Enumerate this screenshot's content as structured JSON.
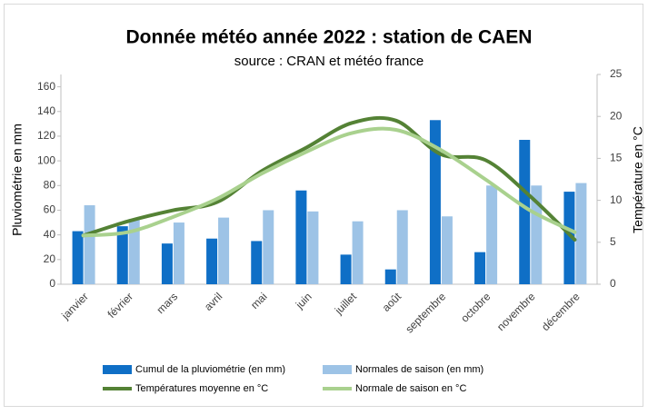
{
  "chart_data": {
    "type": "bar-line",
    "title": "Donnée météo année 2022 : station de CAEN",
    "subtitle": "source : CRAN et météo france",
    "y_label": "Pluviométrie en mm",
    "y2_label": "Température en °C",
    "categories": [
      "janvier",
      "février",
      "mars",
      "avril",
      "mai",
      "juin",
      "juillet",
      "août",
      "septembre",
      "octobre",
      "novembre",
      "décembre"
    ],
    "ylim": [
      0,
      170
    ],
    "yticks": [
      0,
      20,
      40,
      60,
      80,
      100,
      120,
      140,
      160
    ],
    "y2lim": [
      0,
      25
    ],
    "y2ticks": [
      0,
      5,
      10,
      15,
      20,
      25
    ],
    "series": [
      {
        "name": "Cumul de la pluviométrie (en mm)",
        "type": "bar",
        "color": "#0f6fc6",
        "values": [
          43,
          47,
          33,
          37,
          35,
          76,
          24,
          12,
          133,
          26,
          117,
          75
        ]
      },
      {
        "name": "Normales de saison (en mm)",
        "type": "bar",
        "color": "#9dc3e6",
        "values": [
          64,
          53,
          50,
          54,
          60,
          59,
          51,
          60,
          55,
          80,
          80,
          82
        ]
      },
      {
        "name": "Températures moyenne en °C",
        "type": "line",
        "axis": "y2",
        "color": "#548235",
        "values": [
          5.8,
          7.5,
          8.8,
          9.8,
          13.5,
          16.3,
          19.2,
          19.5,
          15.5,
          14.8,
          10.5,
          5.3
        ]
      },
      {
        "name": "Normale de saison en °C",
        "type": "line",
        "axis": "y2",
        "color": "#a9d18e",
        "values": [
          5.8,
          6.2,
          8,
          10.2,
          13.2,
          15.8,
          18,
          18.4,
          16,
          12.5,
          8.8,
          6.2
        ]
      }
    ]
  }
}
